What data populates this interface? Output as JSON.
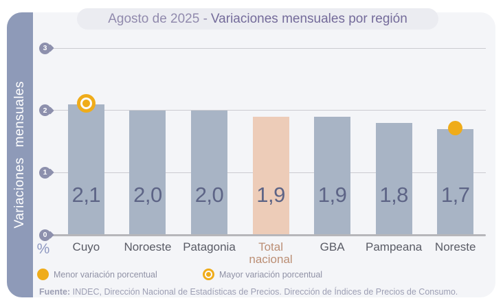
{
  "title": {
    "prefix": "Agosto de 2025 -",
    "rest": "Variaciones mensuales por región"
  },
  "y_axis": {
    "label": "Variaciones mensuales",
    "unit": "%",
    "ticks": [
      "3",
      "2",
      "1",
      "0"
    ]
  },
  "chart_data": {
    "type": "bar",
    "title": "Agosto de 2025 - Variaciones mensuales por región",
    "categories": [
      "Cuyo",
      "Noroeste",
      "Patagonia",
      "Total nacional",
      "GBA",
      "Pampeana",
      "Noreste"
    ],
    "values": [
      2.1,
      2.0,
      2.0,
      1.9,
      1.9,
      1.8,
      1.7
    ],
    "value_labels": [
      "2,1",
      "2,0",
      "2,0",
      "1,9",
      "1,9",
      "1,8",
      "1,7"
    ],
    "xlabel": "",
    "ylabel": "Variaciones mensuales (%)",
    "ylim": [
      0,
      3
    ],
    "grid": "horizontal",
    "legend_position": "bottom",
    "highlight_category": "Total nacional",
    "markers": [
      {
        "category": "Cuyo",
        "type": "ring",
        "meaning": "Mayor variación porcentual"
      },
      {
        "category": "Noreste",
        "type": "dot",
        "meaning": "Menor variación porcentual"
      }
    ]
  },
  "legend": {
    "items": [
      {
        "icon": "dot",
        "label": "Menor variación porcentual"
      },
      {
        "icon": "ring",
        "label": "Mayor variación porcentual"
      }
    ]
  },
  "footer": {
    "prefix": "Fuente:",
    "text": " INDEC, Dirección Nacional de Estadísticas de Precios. Dirección de Índices de Precios de Consumo."
  },
  "colors": {
    "bar_fill": "#a8b4c5",
    "highlight_bar_fill": "#edccb8",
    "accent_orange": "#efac1a",
    "sidebar": "#8e9ab8",
    "value_text": "#5d6486",
    "total_label_text": "#bb8e74"
  }
}
